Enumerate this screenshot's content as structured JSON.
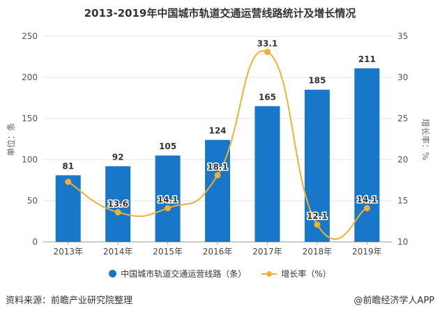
{
  "chart_data": {
    "type": "bar+line",
    "title": "2013-2019年中国城市轨道交通运营线路统计及增长情况",
    "categories": [
      "2013年",
      "2014年",
      "2015年",
      "2016年",
      "2017年",
      "2018年",
      "2019年"
    ],
    "series": [
      {
        "name": "中国城市轨道交通运营线路（条）",
        "type": "bar",
        "axis": "left",
        "color": "#1877c9",
        "values": [
          81,
          92,
          105,
          124,
          165,
          185,
          211
        ],
        "labels": [
          "81",
          "92",
          "105",
          "124",
          "165",
          "185",
          "211"
        ]
      },
      {
        "name": "增长率（%）",
        "type": "line",
        "axis": "right",
        "color": "#f0b032",
        "values": [
          17.3,
          13.6,
          14.1,
          18.1,
          33.1,
          12.1,
          14.1
        ],
        "labels": [
          "",
          "13.6",
          "14.1",
          "18.1",
          "33.1",
          "12.1",
          "14.1"
        ]
      }
    ],
    "ylabel": "单位：条",
    "y2label": "增长率：%",
    "ylim": [
      0,
      250
    ],
    "yticks": [
      "0",
      "50",
      "100",
      "150",
      "200",
      "250"
    ],
    "y2lim": [
      10,
      35
    ],
    "y2ticks": [
      "10",
      "15",
      "20",
      "25",
      "30",
      "35"
    ],
    "grid": true,
    "legend": "bottom"
  },
  "footer": {
    "source": "资料来源：前瞻产业研究院整理",
    "credit": "@前瞻经济学人APP"
  }
}
